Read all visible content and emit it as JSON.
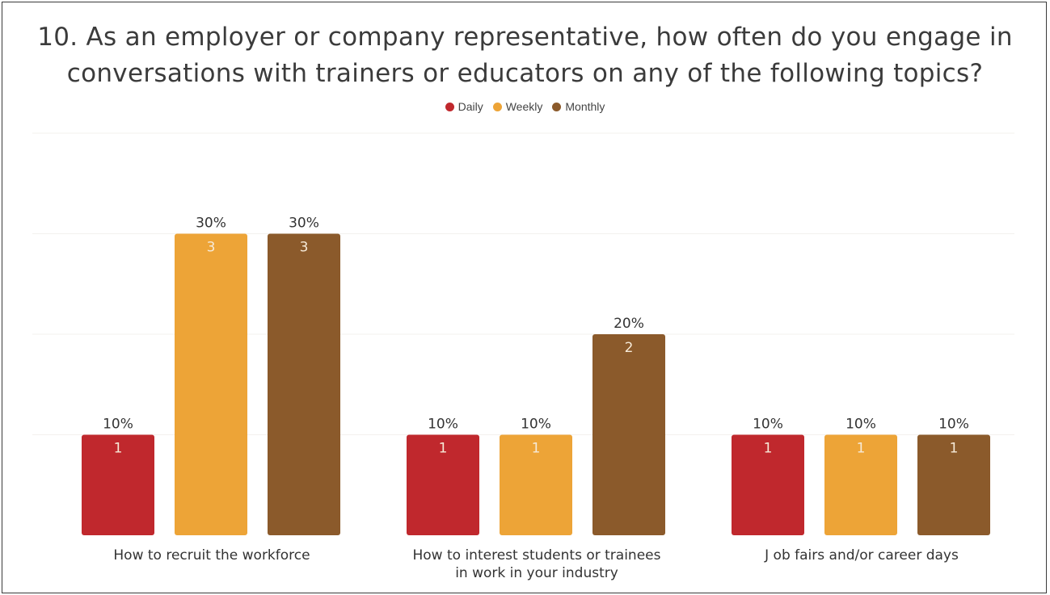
{
  "chart_data": {
    "type": "bar",
    "title": "10. As an employer or company representative, how often do you engage in conversations with trainers or educators on any of the following topics?",
    "title_lines": [
      "10. As an employer or company representative, how often do you engage in",
      "conversations with trainers or educators on any of the following topics?"
    ],
    "categories": [
      "How to recruit the workforce",
      "How to interest students or trainees in work in your industry",
      "Job fairs and/or career days"
    ],
    "category_lines": [
      [
        "How to recruit the workforce"
      ],
      [
        "How to interest students or trainees",
        "in work in your industry"
      ],
      [
        "J ob fairs and/or career days"
      ]
    ],
    "series": [
      {
        "name": "Daily",
        "color": "#c0282d",
        "values": [
          1,
          1,
          1
        ],
        "percent_labels": [
          "10%",
          "10%",
          "10%"
        ]
      },
      {
        "name": "Weekly",
        "color": "#eda437",
        "values": [
          3,
          1,
          1
        ],
        "percent_labels": [
          "30%",
          "10%",
          "10%"
        ]
      },
      {
        "name": "Monthly",
        "color": "#8b5a2b",
        "values": [
          3,
          2,
          1
        ],
        "percent_labels": [
          "30%",
          "20%",
          "10%"
        ]
      }
    ],
    "ylim": [
      0,
      4
    ],
    "legend_position": "top-center",
    "grid": true
  }
}
